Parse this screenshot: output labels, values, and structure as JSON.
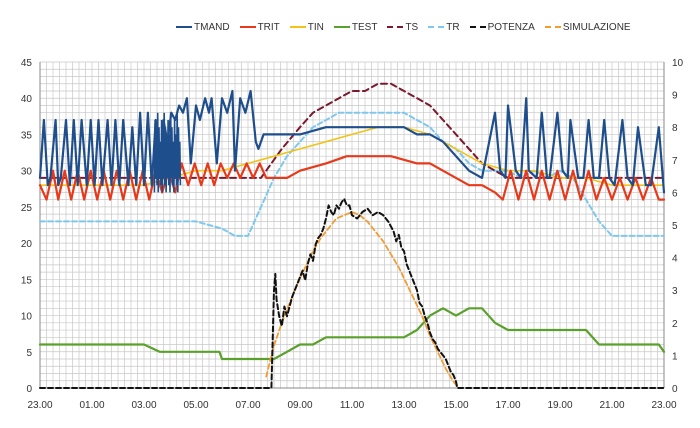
{
  "chart_data": {
    "type": "line",
    "title": "",
    "grid": true,
    "legend_position": "top",
    "x_ticks": [
      "23.00",
      "01.00",
      "03.00",
      "05.00",
      "07.00",
      "09.00",
      "11.00",
      "13.00",
      "15.00",
      "17.00",
      "19.00",
      "21.00",
      "23.00"
    ],
    "x_range_hours": [
      0,
      24
    ],
    "y_left": {
      "range": [
        0,
        45
      ],
      "ticks": [
        "0",
        "5",
        "10",
        "15",
        "20",
        "25",
        "30",
        "35",
        "40",
        "45"
      ]
    },
    "y_right": {
      "range": [
        0,
        10
      ],
      "ticks": [
        "0",
        "1",
        "2",
        "3",
        "4",
        "5",
        "6",
        "7",
        "8",
        "9",
        "10"
      ]
    },
    "series": [
      {
        "name": "TMAND",
        "color": "#1f4e8c",
        "dash": "solid",
        "width": 2.2,
        "axis": "left",
        "x": [
          0,
          0.15,
          0.3,
          0.4,
          0.6,
          0.7,
          0.8,
          1.0,
          1.15,
          1.3,
          1.45,
          1.6,
          1.8,
          1.95,
          2.1,
          2.25,
          2.4,
          2.6,
          2.75,
          2.9,
          3.05,
          3.2,
          3.4,
          3.55,
          3.7,
          3.85,
          4.0,
          4.15,
          4.3,
          4.45,
          4.6,
          4.75,
          4.9,
          5.05,
          5.2,
          5.35,
          5.5,
          5.65,
          5.8,
          6.0,
          6.15,
          6.35,
          6.5,
          6.6,
          6.8,
          7.0,
          7.2,
          7.4,
          7.5,
          7.7,
          7.9,
          8.1,
          8.3,
          8.4,
          8.6,
          8.8,
          9.0,
          9.5,
          10.0,
          11.0,
          12.0,
          13.0,
          14.0,
          14.5,
          15.0,
          15.5,
          16.0,
          16.5,
          17.0,
          17.5,
          17.7,
          17.9,
          18.0,
          18.3,
          18.5,
          18.7,
          18.8,
          19.1,
          19.3,
          19.5,
          19.6,
          19.9,
          20.1,
          20.3,
          20.4,
          20.7,
          20.9,
          21.1,
          21.3,
          21.5,
          21.7,
          21.9,
          22.1,
          22.4,
          22.6,
          22.8,
          23.0,
          23.3,
          23.5,
          23.8,
          24.0
        ],
        "y": [
          29,
          37,
          28,
          29,
          37,
          28,
          29,
          37,
          28,
          37,
          28,
          37,
          28,
          37,
          28,
          37,
          28,
          37,
          28,
          37,
          28,
          37,
          28,
          36,
          28,
          38,
          28,
          38,
          28,
          37,
          29,
          37,
          34,
          38,
          37,
          39,
          38,
          40,
          31,
          39,
          37,
          40,
          38,
          40,
          31,
          40,
          38,
          41,
          30,
          40,
          38,
          41,
          34,
          33,
          35,
          35,
          35,
          35,
          35,
          36,
          36,
          36,
          36,
          35,
          35,
          34,
          32,
          30,
          29,
          38,
          30,
          29,
          39,
          30,
          29,
          40,
          30,
          29,
          38,
          29,
          29,
          38,
          30,
          29,
          37,
          29,
          29,
          37,
          29,
          29,
          37,
          29,
          28,
          37,
          29,
          28,
          36,
          28,
          28,
          36,
          27
        ],
        "fill_dense": {
          "from": 4.4,
          "to": 5.4,
          "min": 27,
          "max": 38
        }
      },
      {
        "name": "TRIT",
        "color": "#e8391b",
        "dash": "solid",
        "width": 2.2,
        "axis": "left",
        "x": [
          0,
          0.25,
          0.5,
          0.7,
          0.95,
          1.2,
          1.45,
          1.7,
          1.95,
          2.2,
          2.45,
          2.7,
          2.95,
          3.2,
          3.45,
          3.7,
          3.95,
          4.2,
          4.45,
          4.7,
          4.95,
          5.2,
          5.45,
          5.7,
          5.95,
          6.2,
          6.45,
          6.7,
          6.95,
          7.2,
          7.45,
          7.7,
          7.95,
          8.2,
          8.45,
          8.7,
          9.0,
          9.5,
          10.0,
          11.0,
          11.8,
          12.5,
          13.5,
          14.5,
          15.0,
          15.5,
          16.0,
          16.5,
          17.0,
          17.5,
          17.8,
          18.1,
          18.4,
          18.7,
          19.0,
          19.3,
          19.6,
          19.9,
          20.2,
          20.5,
          20.8,
          21.1,
          21.4,
          21.7,
          22.0,
          22.3,
          22.6,
          22.9,
          23.2,
          23.5,
          23.8,
          24.0
        ],
        "y": [
          28,
          26,
          30,
          26,
          30,
          26,
          30,
          26,
          30,
          26,
          30,
          26,
          30,
          26,
          30,
          26,
          30,
          26,
          30,
          27,
          30,
          27,
          31,
          28,
          31,
          28,
          31,
          28,
          31,
          29,
          31,
          29,
          31,
          29,
          31,
          29,
          29,
          29,
          30,
          31,
          32,
          32,
          32,
          31,
          31,
          30,
          29,
          28,
          28,
          27,
          26,
          30,
          26,
          30,
          26,
          30,
          26,
          30,
          26,
          30,
          26,
          30,
          26,
          29,
          26,
          29,
          26,
          29,
          26,
          29,
          26,
          26
        ]
      },
      {
        "name": "TIN",
        "color": "#f0c419",
        "dash": "solid",
        "width": 1.6,
        "axis": "left",
        "x": [
          0,
          0.5,
          1,
          2,
          3,
          4,
          5,
          6,
          7,
          8,
          9,
          10,
          11,
          12,
          13,
          14,
          15,
          15.5,
          16,
          17,
          18,
          19,
          20,
          21,
          22,
          23,
          24
        ],
        "y": [
          28,
          28,
          28,
          28,
          28,
          28,
          29,
          30,
          30,
          31,
          32,
          33,
          34,
          35,
          36,
          36,
          35,
          34,
          33,
          31,
          30,
          30,
          29,
          29,
          28,
          28,
          28
        ]
      },
      {
        "name": "TEST",
        "color": "#5aa02c",
        "dash": "solid",
        "width": 2.2,
        "axis": "left",
        "x": [
          0,
          1,
          2,
          3,
          4,
          4.6,
          5,
          6,
          6.9,
          7,
          7.5,
          8,
          8.5,
          9,
          9.5,
          10,
          10.5,
          11,
          12,
          13,
          14,
          14.5,
          15,
          15.5,
          16,
          16.5,
          17,
          17.5,
          18,
          19,
          20,
          21,
          21.5,
          22,
          22.5,
          23,
          23.8,
          24
        ],
        "y": [
          6,
          6,
          6,
          6,
          6,
          5,
          5,
          5,
          5,
          4,
          4,
          4,
          4,
          4,
          5,
          6,
          6,
          7,
          7,
          7,
          7,
          8,
          10,
          11,
          10,
          11,
          11,
          9,
          8,
          8,
          8,
          8,
          6,
          6,
          6,
          6,
          6,
          5
        ]
      },
      {
        "name": "TS",
        "color": "#7a1a2e",
        "dash": "6,4",
        "width": 2,
        "axis": "left",
        "x": [
          0,
          8.5,
          9.3,
          10,
          10.5,
          11,
          11.5,
          12,
          12.5,
          13,
          13.5,
          14,
          14.5,
          15,
          15.5,
          16,
          16.5,
          17,
          17.5,
          18,
          19,
          20,
          21,
          22,
          23,
          24
        ],
        "y": [
          29,
          29,
          33,
          36,
          38,
          39,
          40,
          41,
          41,
          42,
          42,
          41,
          40,
          39,
          37,
          35,
          33,
          31,
          30,
          29,
          29,
          29,
          29,
          29,
          29,
          29
        ]
      },
      {
        "name": "TR",
        "color": "#7ec8ef",
        "dash": "5,3",
        "width": 2,
        "axis": "left",
        "x": [
          0,
          1,
          2,
          3,
          4,
          5,
          6,
          7,
          7.5,
          8,
          8.5,
          9,
          9.5,
          10,
          10.5,
          11,
          11.5,
          12,
          12.5,
          13,
          13.5,
          14,
          14.5,
          15,
          15.5,
          16,
          16.5,
          17,
          17.5,
          18,
          18.5,
          19,
          19.5,
          20,
          20.5,
          21,
          21.5,
          22,
          23,
          24
        ],
        "y": [
          23,
          23,
          23,
          23,
          23,
          23,
          23,
          22,
          21,
          21,
          25,
          29,
          32,
          34,
          36,
          37,
          38,
          38,
          38,
          38,
          38,
          38,
          37,
          36,
          34,
          33,
          31,
          30,
          30,
          30,
          29,
          30,
          29,
          30,
          29,
          26,
          23,
          21,
          21,
          21
        ]
      },
      {
        "name": "POTENZA",
        "color": "#111111",
        "dash": "5,3",
        "width": 2,
        "axis": "right",
        "x": [
          0,
          8.9,
          9.0,
          9.05,
          9.1,
          9.2,
          9.3,
          9.4,
          9.5,
          9.6,
          9.7,
          9.8,
          9.9,
          10.0,
          10.1,
          10.2,
          10.3,
          10.4,
          10.5,
          10.6,
          10.7,
          10.8,
          10.9,
          11.0,
          11.1,
          11.2,
          11.3,
          11.4,
          11.5,
          11.6,
          11.7,
          11.8,
          11.9,
          12.0,
          12.2,
          12.4,
          12.6,
          12.8,
          13.0,
          13.2,
          13.4,
          13.6,
          13.7,
          13.8,
          13.9,
          14.0,
          14.1,
          14.2,
          14.3,
          14.4,
          14.5,
          14.6,
          14.7,
          14.8,
          14.9,
          15.0,
          15.1,
          15.2,
          15.3,
          15.4,
          15.5,
          15.6,
          15.7,
          15.8,
          15.9,
          16.0,
          16.05,
          16.1,
          16.2,
          24
        ],
        "y": [
          0,
          0,
          3.0,
          3.5,
          2.7,
          2.2,
          1.9,
          2.5,
          2.2,
          2.5,
          2.8,
          3.0,
          3.2,
          3.4,
          3.6,
          3.3,
          3.8,
          4.1,
          3.9,
          4.4,
          4.6,
          4.7,
          4.9,
          5.2,
          5.6,
          5.4,
          5.3,
          5.6,
          5.5,
          5.7,
          5.8,
          5.6,
          5.6,
          5.3,
          5.2,
          5.4,
          5.5,
          5.3,
          5.4,
          5.3,
          5.1,
          4.8,
          4.5,
          4.7,
          4.3,
          4.2,
          3.8,
          3.6,
          3.4,
          3.2,
          3.0,
          2.6,
          2.5,
          2.2,
          2.0,
          1.7,
          1.5,
          1.4,
          1.2,
          1.1,
          1.0,
          0.9,
          0.7,
          0.5,
          0.4,
          0.2,
          0,
          0,
          0,
          0
        ]
      },
      {
        "name": "SIMULAZIONE",
        "color": "#f39c34",
        "dash": "5,3",
        "width": 1.8,
        "axis": "right",
        "x": [
          8.7,
          9.0,
          9.3,
          9.6,
          9.9,
          10.2,
          10.5,
          10.8,
          11.1,
          11.4,
          11.7,
          12.0,
          12.3,
          12.6,
          12.9,
          13.2,
          13.5,
          13.8,
          14.1,
          14.4,
          14.7,
          15.0,
          15.3,
          15.6,
          15.9,
          16.1
        ],
        "y": [
          0.35,
          1.3,
          2.0,
          2.6,
          3.2,
          3.7,
          4.2,
          4.6,
          4.9,
          5.2,
          5.3,
          5.4,
          5.3,
          5.1,
          4.8,
          4.5,
          4.1,
          3.7,
          3.2,
          2.7,
          2.2,
          1.6,
          1.1,
          0.6,
          0.2,
          0
        ]
      }
    ]
  }
}
